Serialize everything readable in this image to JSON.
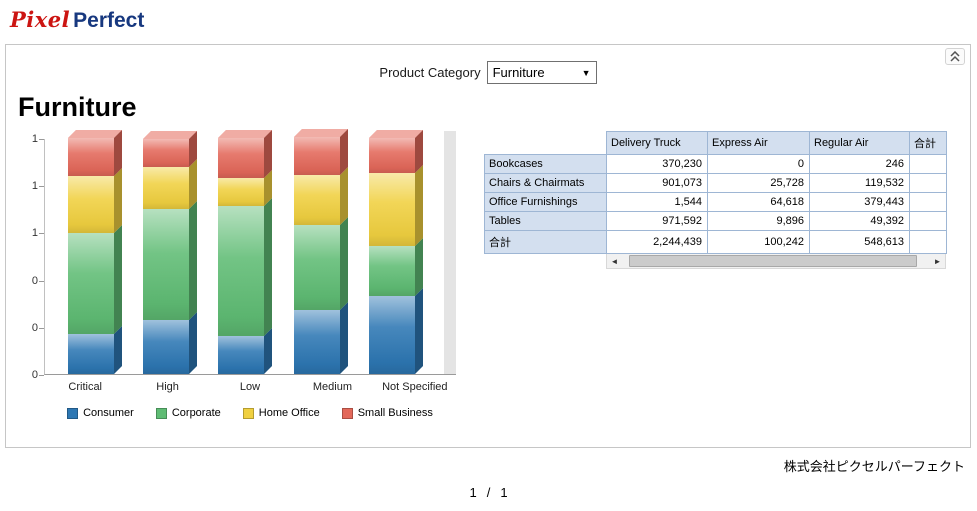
{
  "logo": {
    "part1": "Pixel",
    "part2": "Perfect"
  },
  "params": {
    "label": "Product Category",
    "value": "Furniture"
  },
  "page_title": "Furniture",
  "chart_data": {
    "type": "bar",
    "stacked": true,
    "stack_mode": "percent",
    "title": "",
    "xlabel": "",
    "ylabel": "",
    "ylim": [
      0,
      1
    ],
    "y_ticks_top_to_bottom": [
      "1",
      "1",
      "1",
      "0",
      "0",
      "0"
    ],
    "categories": [
      "Critical",
      "High",
      "Low",
      "Medium",
      "Not Specified"
    ],
    "series": [
      {
        "name": "Consumer",
        "color": "#2d77b3",
        "values": [
          0.17,
          0.23,
          0.16,
          0.27,
          0.33
        ]
      },
      {
        "name": "Corporate",
        "color": "#5fbc74",
        "values": [
          0.43,
          0.47,
          0.55,
          0.36,
          0.21
        ]
      },
      {
        "name": "Home Office",
        "color": "#f0d040",
        "values": [
          0.24,
          0.18,
          0.12,
          0.21,
          0.31
        ]
      },
      {
        "name": "Small Business",
        "color": "#e3685a",
        "values": [
          0.16,
          0.12,
          0.17,
          0.16,
          0.15
        ]
      }
    ],
    "legend_position": "bottom",
    "grid": false
  },
  "table": {
    "columns": [
      "",
      "Delivery Truck",
      "Express Air",
      "Regular Air",
      "合計"
    ],
    "rows": [
      {
        "label": "Bookcases",
        "values": [
          "370,230",
          "0",
          "246",
          ""
        ]
      },
      {
        "label": "Chairs & Chairmats",
        "values": [
          "901,073",
          "25,728",
          "119,532",
          ""
        ]
      },
      {
        "label": "Office Furnishings",
        "values": [
          "1,544",
          "64,618",
          "379,443",
          ""
        ]
      },
      {
        "label": "Tables",
        "values": [
          "971,592",
          "9,896",
          "49,392",
          ""
        ]
      },
      {
        "label": "合計",
        "values": [
          "2,244,439",
          "100,242",
          "548,613",
          ""
        ]
      }
    ]
  },
  "footer": {
    "company": "株式会社ピクセルパーフェクト",
    "page": "1",
    "sep": "/",
    "total": "1"
  }
}
